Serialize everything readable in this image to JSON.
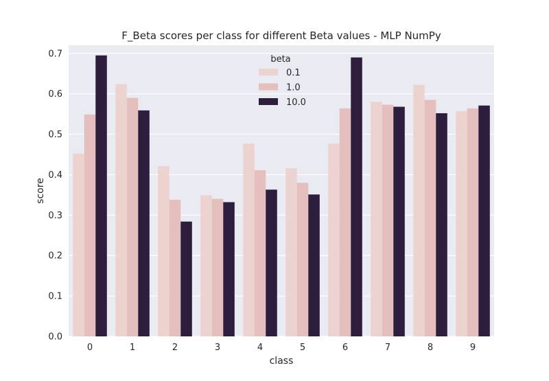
{
  "chart_data": {
    "type": "bar",
    "title": "F_Beta scores per class for different Beta values - MLP NumPy",
    "xlabel": "class",
    "ylabel": "score",
    "categories": [
      "0",
      "1",
      "2",
      "3",
      "4",
      "5",
      "6",
      "7",
      "8",
      "9"
    ],
    "ylim": [
      0,
      0.72
    ],
    "yticks": [
      "0.0",
      "0.1",
      "0.2",
      "0.3",
      "0.4",
      "0.5",
      "0.6",
      "0.7"
    ],
    "grid": true,
    "legend": {
      "title": "beta",
      "placement": "upper-center"
    },
    "series": [
      {
        "name": "0.1",
        "color": "#ecd3cf",
        "values": [
          0.452,
          0.624,
          0.421,
          0.349,
          0.477,
          0.416,
          0.477,
          0.58,
          0.622,
          0.557
        ]
      },
      {
        "name": "1.0",
        "color": "#e4bfbd",
        "values": [
          0.549,
          0.59,
          0.338,
          0.34,
          0.411,
          0.38,
          0.564,
          0.573,
          0.585,
          0.564
        ]
      },
      {
        "name": "10.0",
        "color": "#2d1e3e",
        "values": [
          0.695,
          0.559,
          0.284,
          0.332,
          0.363,
          0.351,
          0.69,
          0.568,
          0.552,
          0.571
        ]
      }
    ],
    "colors": {
      "background": "#eaeaf2",
      "grid": "#ffffff"
    }
  }
}
